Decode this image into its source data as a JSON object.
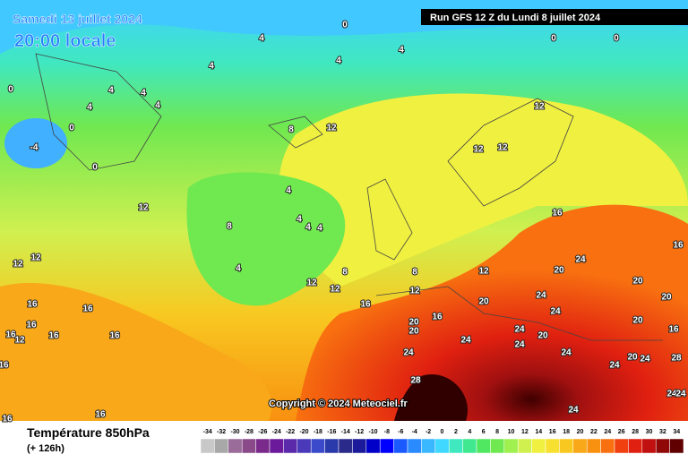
{
  "header": {
    "date": "Samedi 13 juillet 2024",
    "time": "20:00 locale",
    "run": "Run GFS 12 Z du Lundi 8 juillet 2024"
  },
  "copyright": "Copyright © 2024 Meteociel.fr",
  "footer": {
    "title": "Température 850hPa",
    "lead": "(+ 126h)"
  },
  "legend": {
    "values": [
      -34,
      -32,
      -30,
      -28,
      -26,
      -24,
      -22,
      -20,
      -18,
      -16,
      -14,
      -12,
      -10,
      -8,
      -6,
      -4,
      -2,
      0,
      2,
      4,
      6,
      8,
      10,
      12,
      14,
      16,
      18,
      20,
      22,
      24,
      26,
      28,
      30,
      32,
      34
    ],
    "colors": [
      "#c8c8c8",
      "#a8a8a8",
      "#9a6c9a",
      "#8a4a8a",
      "#7a2a8a",
      "#6a1a9a",
      "#5a2aaa",
      "#4a3aba",
      "#3a4aca",
      "#2a3aaa",
      "#2a2a8a",
      "#1a1a9a",
      "#0000c8",
      "#0000ff",
      "#1a5aff",
      "#2a8aff",
      "#3ab8ff",
      "#40d8ff",
      "#40e8c0",
      "#40e890",
      "#50e860",
      "#70e850",
      "#a0f050",
      "#d0f050",
      "#f0f040",
      "#f8e030",
      "#f8c820",
      "#f8a818",
      "#f89010",
      "#f87010",
      "#f04010",
      "#e02010",
      "#c01010",
      "#900808",
      "#600000"
    ]
  },
  "contour_labels": [
    0,
    0,
    0,
    4,
    4,
    4,
    4,
    0,
    4,
    4,
    4,
    4,
    0,
    -4,
    0,
    8,
    12,
    12,
    12,
    12,
    12,
    4,
    8,
    4,
    4,
    4,
    4,
    16,
    12,
    12,
    16,
    8,
    8,
    12,
    12,
    12,
    24,
    20,
    20,
    20,
    12,
    20,
    24,
    16,
    16,
    20,
    20,
    24,
    24,
    20,
    16,
    16,
    16,
    16,
    16,
    16,
    12,
    16,
    24,
    24,
    20,
    24,
    24,
    24,
    20,
    24,
    28,
    28,
    24,
    24,
    24,
    16,
    16,
    16
  ]
}
